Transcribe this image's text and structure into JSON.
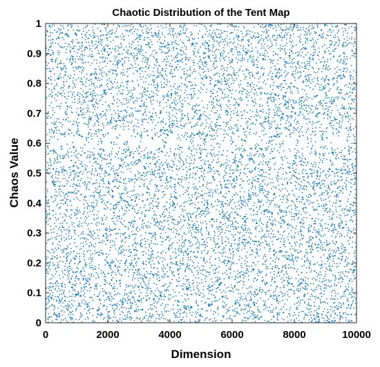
{
  "chart_data": {
    "type": "scatter",
    "title": "Chaotic Distribution of the Tent Map",
    "xlabel": "Dimension",
    "ylabel": "Chaos Value",
    "xlim": [
      0,
      10000
    ],
    "ylim": [
      0,
      1
    ],
    "xticks": [
      "0",
      "2000",
      "4000",
      "6000",
      "8000",
      "10000"
    ],
    "yticks": [
      "0",
      "0.1",
      "0.2",
      "0.3",
      "0.4",
      "0.5",
      "0.6",
      "0.7",
      "0.8",
      "0.9",
      "1"
    ],
    "grid": false,
    "series": [
      {
        "color": "#0072BD",
        "marker": "dot",
        "n_points": 10000,
        "distribution": "uniform in [0,1] over indices 1..10000, with periodic sparse bands near y≈0.6"
      }
    ]
  }
}
